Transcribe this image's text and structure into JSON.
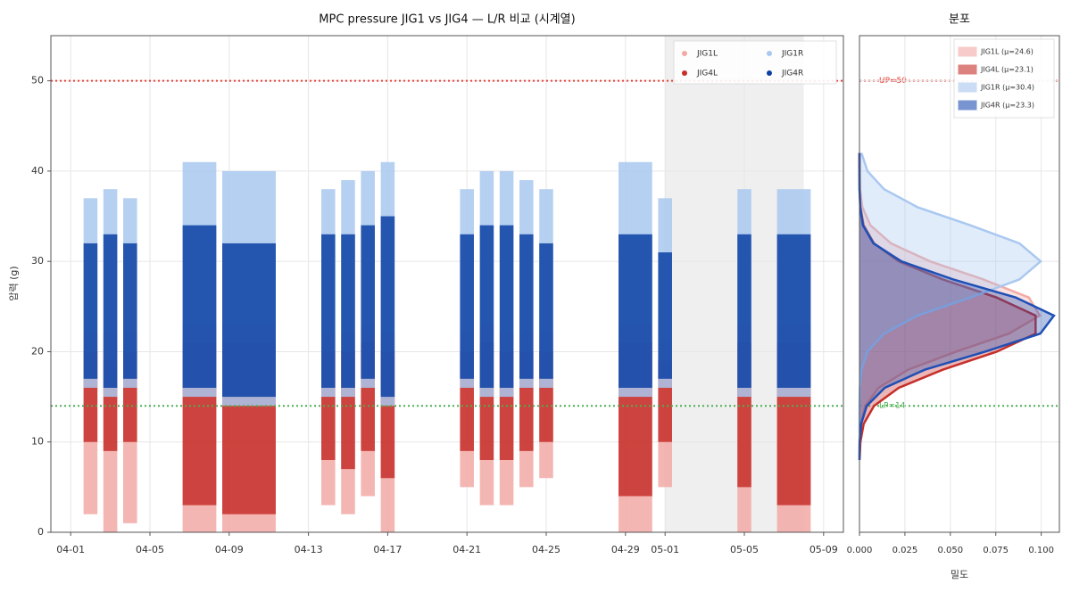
{
  "chart_data": [
    {
      "type": "strip",
      "title": "MPC pressure JIG1 vs JIG4 — L/R 비교 (시계열)",
      "ylabel": "압력 (g)",
      "xlim": [
        "03-31",
        "05-10"
      ],
      "xticks": [
        "04-01",
        "04-05",
        "04-09",
        "04-13",
        "04-17",
        "04-21",
        "04-25",
        "04-29",
        "05-01",
        "05-05",
        "05-09"
      ],
      "ylim": [
        0,
        55
      ],
      "yticks": [
        0,
        10,
        20,
        30,
        40,
        50
      ],
      "grid": true,
      "legend": "upper right",
      "shaded": [
        "05-01",
        "05-08"
      ],
      "hlines": [
        {
          "value": 50,
          "color": "#e8403a",
          "label": "UP=50"
        },
        {
          "value": 14,
          "color": "#4caf50",
          "label": "LP=14"
        }
      ],
      "bursts": {
        "start": [
          "04-02",
          "04-03",
          "04-04",
          "04-07",
          "04-09",
          "04-14",
          "04-15",
          "04-16",
          "04-17",
          "04-21",
          "04-22",
          "04-23",
          "04-24",
          "04-25",
          "04-29",
          "05-01",
          "05-05",
          "05-07"
        ],
        "end": [
          "04-02",
          "04-03",
          "04-04",
          "04-08",
          "04-11",
          "04-14",
          "04-15",
          "04-16",
          "04-17",
          "04-21",
          "04-22",
          "04-23",
          "04-24",
          "04-25",
          "04-30",
          "05-01",
          "05-05",
          "05-08"
        ]
      },
      "series": [
        {
          "name": "JIG1L",
          "color": "#f2a9a6",
          "low": [
            2,
            0,
            1,
            0,
            0,
            3,
            2,
            4,
            0,
            5,
            3,
            3,
            5,
            6,
            0,
            5,
            0,
            0
          ],
          "high": [
            22,
            22,
            22,
            23,
            23,
            22,
            22,
            23,
            22,
            22,
            23,
            22,
            22,
            22,
            23,
            21,
            23,
            23
          ]
        },
        {
          "name": "JIG4L",
          "color": "#c62f2a",
          "low": [
            10,
            9,
            10,
            3,
            2,
            8,
            7,
            9,
            6,
            9,
            8,
            8,
            9,
            10,
            4,
            10,
            5,
            3
          ],
          "high": [
            20,
            19,
            20,
            21,
            21,
            20,
            20,
            21,
            20,
            20,
            21,
            20,
            20,
            20,
            21,
            19,
            21,
            21
          ]
        },
        {
          "name": "JIG1R",
          "color": "#a9c8f0",
          "low": [
            16,
            15,
            16,
            15,
            14,
            15,
            15,
            16,
            14,
            16,
            15,
            15,
            16,
            16,
            15,
            16,
            15,
            15
          ],
          "high": [
            37,
            38,
            37,
            41,
            40,
            38,
            39,
            40,
            41,
            38,
            40,
            40,
            39,
            38,
            41,
            37,
            38,
            38
          ]
        },
        {
          "name": "JIG4R",
          "color": "#0b3fa3",
          "low": [
            17,
            16,
            17,
            16,
            15,
            16,
            16,
            17,
            15,
            17,
            16,
            16,
            17,
            17,
            16,
            17,
            16,
            16
          ],
          "high": [
            32,
            33,
            32,
            34,
            32,
            33,
            33,
            34,
            35,
            33,
            34,
            34,
            33,
            32,
            33,
            31,
            33,
            33
          ]
        }
      ]
    },
    {
      "type": "density",
      "title": "분포",
      "xlabel": "밀도",
      "xlim": [
        0,
        0.11
      ],
      "xticks": [
        {
          "value": 0,
          "label": "0.000"
        },
        {
          "value": 0.025,
          "label": "0.025"
        },
        {
          "value": 0.05,
          "label": "0.050"
        },
        {
          "value": 0.075,
          "label": "0.075"
        },
        {
          "value": 0.1,
          "label": "0.100"
        }
      ],
      "ylim": [
        0,
        55
      ],
      "yticks": [
        0,
        10,
        20,
        30,
        40,
        50
      ],
      "grid": true,
      "legend": "upper right",
      "y": [
        8,
        10,
        12,
        14,
        16,
        18,
        20,
        22,
        24,
        26,
        28,
        30,
        32,
        34,
        36,
        38,
        40,
        42
      ],
      "series": [
        {
          "name": "JIG1L (μ=24.6)",
          "color": "#f2a9a6",
          "values": [
            0,
            0.0001,
            0.0008,
            0.0032,
            0.0105,
            0.0267,
            0.0531,
            0.0822,
            0.0992,
            0.0932,
            0.0682,
            0.0389,
            0.0173,
            0.006,
            0.0016,
            0.0003,
            0.0001,
            0
          ]
        },
        {
          "name": "JIG4L (μ=23.1)",
          "color": "#c62f2a",
          "values": [
            0.0001,
            0.0005,
            0.0023,
            0.008,
            0.0216,
            0.0458,
            0.0755,
            0.0969,
            0.0969,
            0.0755,
            0.0458,
            0.0216,
            0.008,
            0.0023,
            0.0005,
            0.0001,
            0,
            0
          ]
        },
        {
          "name": "JIG1R (μ=30.4)",
          "color": "#a9c8f0",
          "values": [
            0,
            0,
            0,
            0,
            0.0002,
            0.0011,
            0.0044,
            0.0135,
            0.032,
            0.061,
            0.088,
            0.0997,
            0.088,
            0.061,
            0.032,
            0.0135,
            0.0044,
            0.0011
          ]
        },
        {
          "name": "JIG4R (μ=23.3)",
          "color": "#1f4fb5",
          "values": [
            0,
            0.0001,
            0.0009,
            0.004,
            0.0139,
            0.0359,
            0.0691,
            0.0995,
            0.107,
            0.086,
            0.0516,
            0.0231,
            0.0077,
            0.0019,
            0.0004,
            0,
            0,
            0
          ]
        }
      ]
    }
  ]
}
